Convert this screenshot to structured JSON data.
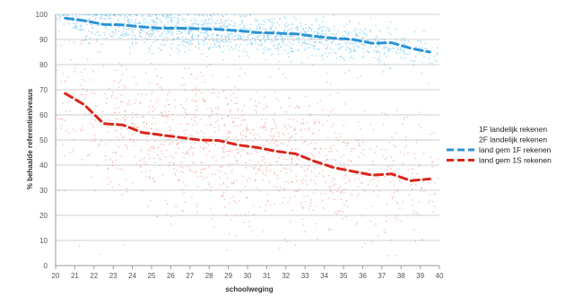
{
  "chart_data": {
    "type": "scatter",
    "title": "",
    "xlabel": "schoolweging",
    "ylabel": "% behaalde referentieniveaus",
    "xlim": [
      20,
      40
    ],
    "ylim": [
      0,
      100
    ],
    "x_ticks": [
      "20",
      "21",
      "22",
      "23",
      "24",
      "25",
      "26",
      "27",
      "28",
      "29",
      "30",
      "31",
      "32",
      "33",
      "34",
      "35",
      "36",
      "37",
      "38",
      "39",
      "40"
    ],
    "y_ticks": [
      "0",
      "10",
      "20",
      "30",
      "40",
      "50",
      "60",
      "70",
      "80",
      "90",
      "100"
    ],
    "grid": "horizontal",
    "legend_position": "right",
    "series": [
      {
        "name": "1F landelijk rekenen",
        "kind": "scatter",
        "color": "#5bbcec",
        "center": [
          [
            20.5,
            97
          ],
          [
            22,
            96
          ],
          [
            24,
            95
          ],
          [
            26,
            94
          ],
          [
            28,
            93
          ],
          [
            30,
            92
          ],
          [
            32,
            91
          ],
          [
            34,
            90
          ],
          [
            36,
            89
          ],
          [
            38,
            87
          ],
          [
            39.5,
            85
          ]
        ],
        "spread": 4,
        "density": [
          [
            20,
            0.3
          ],
          [
            22,
            0.6
          ],
          [
            24,
            0.8
          ],
          [
            26,
            0.9
          ],
          [
            28,
            1
          ],
          [
            30,
            1
          ],
          [
            32,
            0.9
          ],
          [
            34,
            0.8
          ],
          [
            36,
            0.6
          ],
          [
            38,
            0.45
          ],
          [
            40,
            0.3
          ]
        ]
      },
      {
        "name": "2F landelijk rekenen",
        "kind": "scatter",
        "color": "#ee8a8a",
        "center": [
          [
            20.5,
            68
          ],
          [
            22,
            60
          ],
          [
            24,
            55
          ],
          [
            26,
            51
          ],
          [
            28,
            50
          ],
          [
            30,
            47
          ],
          [
            32,
            44
          ],
          [
            34,
            39
          ],
          [
            36,
            36
          ],
          [
            38,
            35
          ],
          [
            39.5,
            34
          ]
        ],
        "spread": 15,
        "density": [
          [
            20,
            0.3
          ],
          [
            22,
            0.6
          ],
          [
            24,
            0.8
          ],
          [
            26,
            0.9
          ],
          [
            28,
            1
          ],
          [
            30,
            1
          ],
          [
            32,
            0.9
          ],
          [
            34,
            0.8
          ],
          [
            36,
            0.6
          ],
          [
            38,
            0.45
          ],
          [
            40,
            0.3
          ]
        ]
      },
      {
        "name": "land gem 1F rekenen",
        "kind": "line",
        "color": "#2a93d5",
        "x": [
          20.5,
          21.5,
          22.5,
          23.5,
          24.5,
          25.5,
          26.5,
          27.5,
          28.5,
          29.5,
          30.5,
          31.5,
          32.5,
          33.5,
          34.5,
          35.5,
          36.5,
          37.5,
          38.5,
          39.5
        ],
        "y": [
          98.5,
          97.5,
          96,
          95.8,
          95,
          94.5,
          94.5,
          94.3,
          94,
          93.5,
          92.8,
          92.5,
          92.2,
          91.3,
          90.5,
          90,
          88.5,
          88.7,
          86.5,
          85
        ]
      },
      {
        "name": "land gem 1S rekenen",
        "kind": "line",
        "color": "#d9261c",
        "x": [
          20.5,
          21.5,
          22.5,
          23.5,
          24.5,
          25.5,
          26.5,
          27.5,
          28.5,
          29.5,
          30.5,
          31.5,
          32.5,
          33.5,
          34.5,
          35.5,
          36.5,
          37.5,
          38.5,
          39.5
        ],
        "y": [
          68.5,
          64,
          56.5,
          56,
          53,
          52,
          51,
          50,
          49.8,
          48,
          47,
          45.5,
          44.5,
          41.5,
          39,
          37.5,
          36,
          36.5,
          33.8,
          34.5
        ]
      }
    ]
  }
}
